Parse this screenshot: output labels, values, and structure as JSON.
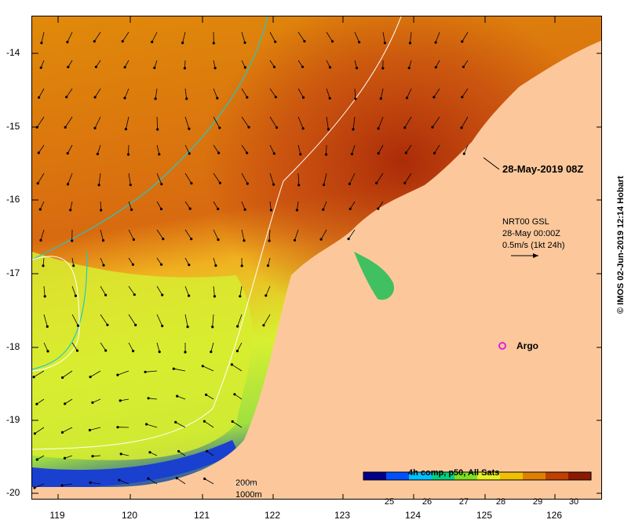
{
  "map": {
    "lat_labels": [
      "-14",
      "-15",
      "-16",
      "-17",
      "-18",
      "-19",
      "-20"
    ],
    "lon_labels": [
      "119",
      "120",
      "121",
      "122",
      "123",
      "124",
      "125",
      "126"
    ],
    "date_label": "28-May-2019 08Z",
    "current_info": {
      "line1": "NRT00 GSL",
      "line2": "28-May 00:00Z",
      "line3": "0.5m/s (1kt 24h)"
    },
    "argo_label": "Argo",
    "isobaths": {
      "label_200": "200m",
      "label_1000": "1000m",
      "color_200": "#ffffff",
      "color_1000": "#20c8c8"
    },
    "colorbar": {
      "title": "4h comp, p50, All Sats",
      "ticks": [
        "25",
        "26",
        "27",
        "28",
        "29",
        "30"
      ],
      "colors": [
        "#00008b",
        "#0050ff",
        "#00c0ff",
        "#00d080",
        "#80e020",
        "#e8f020",
        "#f0c000",
        "#e08000",
        "#c04000",
        "#8b1a00"
      ]
    },
    "land_color": "#fcc89b",
    "credit": "© IMOS 02-Jun-2019 12:14 Hobart"
  }
}
